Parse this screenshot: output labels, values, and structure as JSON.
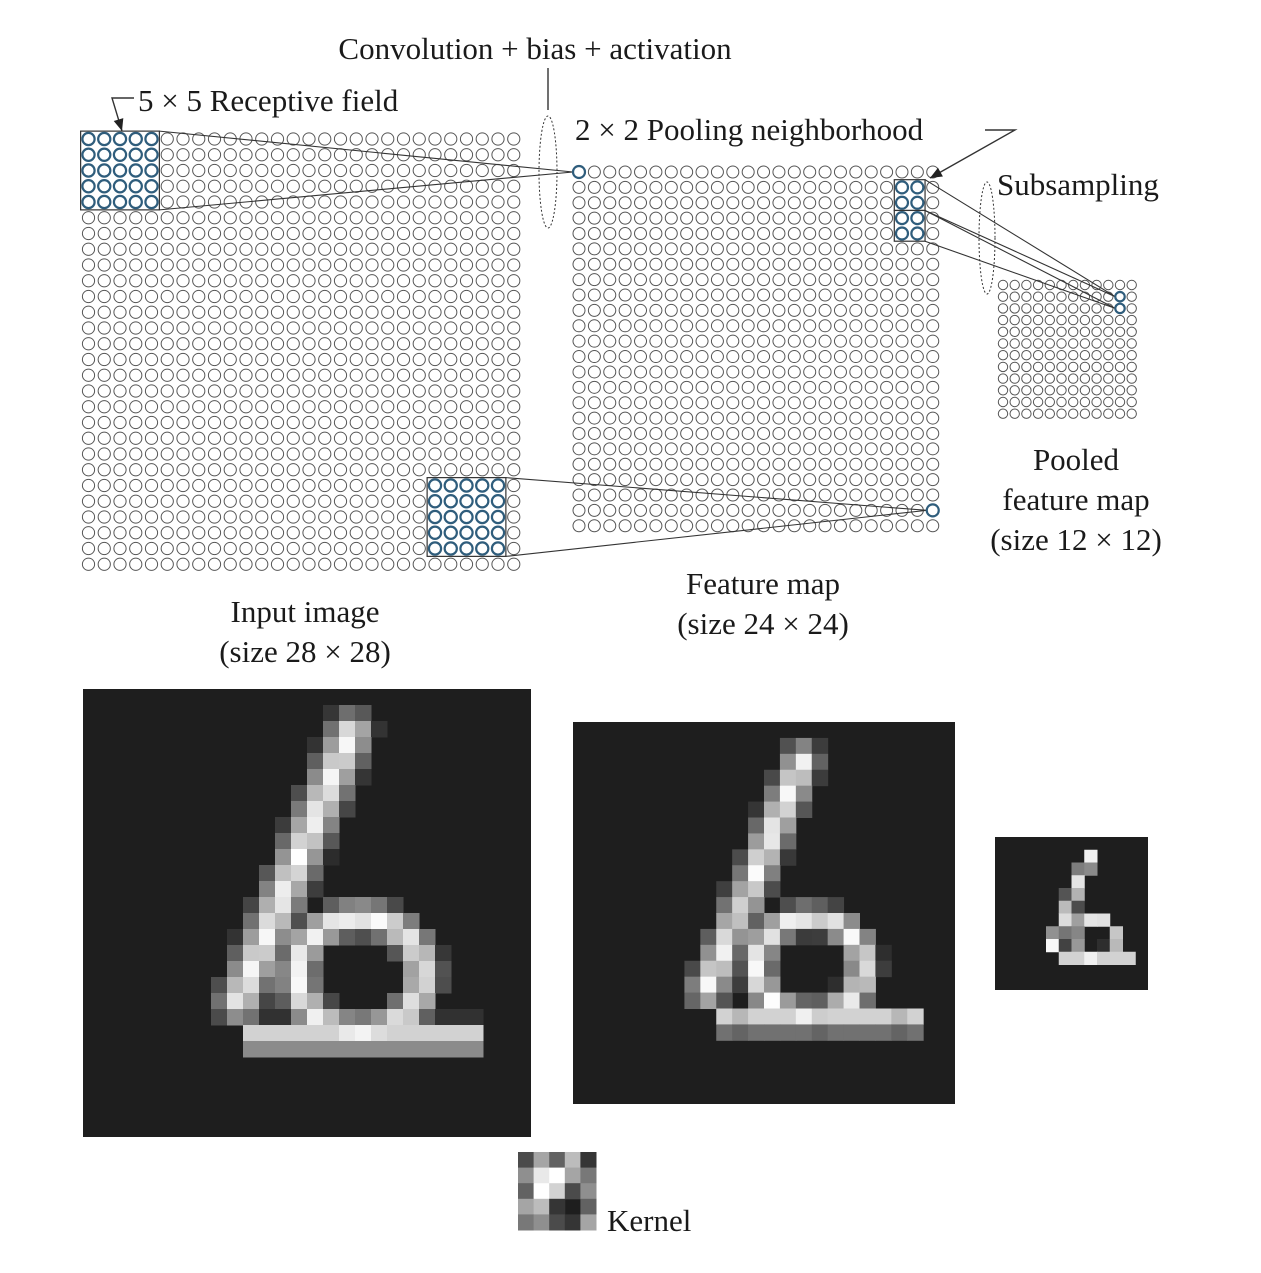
{
  "labels": {
    "conv": "Convolution + bias + activation",
    "receptive": "5 × 5 Receptive field",
    "pooling": "2 × 2 Pooling neighborhood",
    "subsampling": "Subsampling",
    "input_title": "Input image",
    "input_size": "(size  28 × 28)",
    "feature_title": "Feature map",
    "feature_size": "(size 24 × 24)",
    "pooled_title1": "Pooled",
    "pooled_title2": "feature map",
    "pooled_size": "(size 12 × 12)",
    "kernel": "Kernel"
  },
  "grids": {
    "input": 28,
    "feature": 24,
    "pooled": 12,
    "receptive": 5,
    "pool": 2
  },
  "colors": {
    "highlight": "#2f5d7c",
    "image_bg": "#1e1e1e",
    "neuron": "#555555"
  }
}
